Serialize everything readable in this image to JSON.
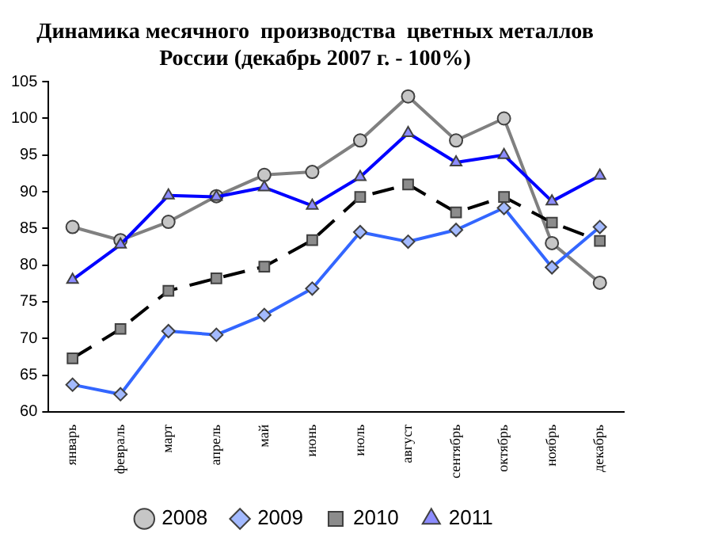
{
  "chart_data": {
    "type": "line",
    "title": "Динамика месячного  производства  цветных металлов\nРоссии (декабрь 2007 г. - 100%)",
    "categories": [
      "январь",
      "февраль",
      "март",
      "апрель",
      "май",
      "июнь",
      "июль",
      "август",
      "сентябрь",
      "октябрь",
      "ноябрь",
      "декабрь"
    ],
    "series": [
      {
        "name": "2008",
        "color": "#808080",
        "marker": "circle",
        "values": [
          85.2,
          83.4,
          85.9,
          89.4,
          92.3,
          92.7,
          97,
          103,
          97,
          100,
          83,
          77.6
        ]
      },
      {
        "name": "2009",
        "color": "#3366ff",
        "marker": "diamond",
        "values": [
          63.7,
          62.4,
          71,
          70.5,
          73.2,
          76.8,
          84.5,
          83.2,
          84.8,
          87.8,
          79.7,
          85.2
        ]
      },
      {
        "name": "2010",
        "color": "#000000",
        "marker": "square",
        "line_style": "dashed",
        "values": [
          67.3,
          71.3,
          76.5,
          78.2,
          79.8,
          83.4,
          89.3,
          91,
          87.2,
          89.3,
          85.8,
          83.3
        ]
      },
      {
        "name": "2011",
        "color": "#0000ff",
        "marker": "triangle",
        "values": [
          78,
          82.8,
          89.5,
          89.3,
          90.6,
          88.1,
          92,
          98,
          94,
          95,
          88.7,
          92.2
        ]
      }
    ],
    "ylim": [
      60,
      105
    ],
    "yticks": [
      60,
      65,
      70,
      75,
      80,
      85,
      90,
      95,
      100,
      105
    ],
    "grid": false,
    "legend": "bottom"
  }
}
